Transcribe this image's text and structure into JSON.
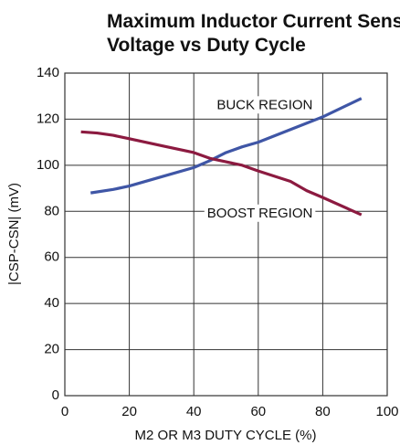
{
  "chart_data": {
    "type": "line",
    "title": [
      "Maximum Inductor Current Sense",
      "Voltage vs Duty Cycle"
    ],
    "xlabel": "M2 OR M3 DUTY CYCLE (%)",
    "ylabel": "|CSP-CSN| (mV)",
    "xlim": [
      0,
      100
    ],
    "xticks": [
      0,
      20,
      40,
      60,
      80,
      100
    ],
    "ylim": [
      0,
      140
    ],
    "yticks": [
      0,
      20,
      40,
      60,
      80,
      100,
      120,
      140
    ],
    "grid": true,
    "series": [
      {
        "name": "BUCK REGION",
        "color": "#3f56a6",
        "x": [
          8,
          15,
          20,
          30,
          40,
          45,
          50,
          55,
          60,
          70,
          80,
          92
        ],
        "values": [
          88,
          89.5,
          91,
          95,
          99,
          102,
          105.5,
          108,
          110,
          115.5,
          121,
          129
        ]
      },
      {
        "name": "BOOST REGION",
        "color": "#8c1a40",
        "x": [
          5,
          10,
          15,
          20,
          30,
          40,
          45,
          50,
          55,
          60,
          70,
          75,
          80,
          92
        ],
        "values": [
          114.5,
          114,
          113,
          111.5,
          108.5,
          105.5,
          103,
          101.5,
          100,
          97.5,
          93,
          89,
          86,
          78.5
        ]
      }
    ]
  }
}
